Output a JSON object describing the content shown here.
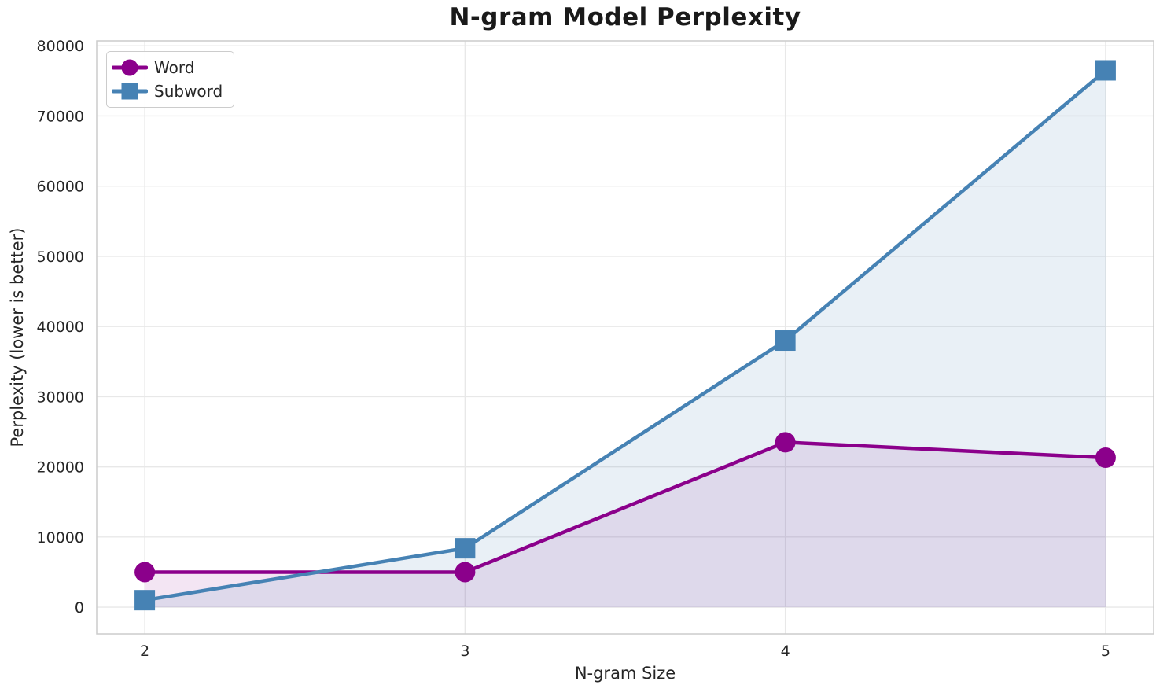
{
  "chart_data": {
    "type": "line",
    "title": "N-gram Model Perplexity",
    "xlabel": "N-gram Size",
    "ylabel": "Perplexity (lower is better)",
    "x": [
      2,
      3,
      4,
      5
    ],
    "series": [
      {
        "name": "Word",
        "values": [
          5000,
          5000,
          23500,
          21300
        ],
        "color": "#8B008B",
        "marker": "circle",
        "fill_alpha": 0.1
      },
      {
        "name": "Subword",
        "values": [
          1000,
          8400,
          38000,
          76500
        ],
        "color": "#4682B4",
        "marker": "square",
        "fill_alpha": 0.12
      }
    ],
    "xticks": [
      2,
      3,
      4,
      5
    ],
    "yticks": [
      0,
      10000,
      20000,
      30000,
      40000,
      50000,
      60000,
      70000,
      80000
    ],
    "xlim": [
      1.85,
      5.15
    ],
    "ylim": [
      -3800,
      80700
    ],
    "grid": true,
    "area_fill_to": 0,
    "legend_position": "upper left"
  },
  "style_colors": {
    "grid": "#e8e8e8",
    "spine": "#cccccc",
    "tick_text": "#262626"
  },
  "legend": {
    "items": [
      {
        "label": "Word"
      },
      {
        "label": "Subword"
      }
    ]
  }
}
